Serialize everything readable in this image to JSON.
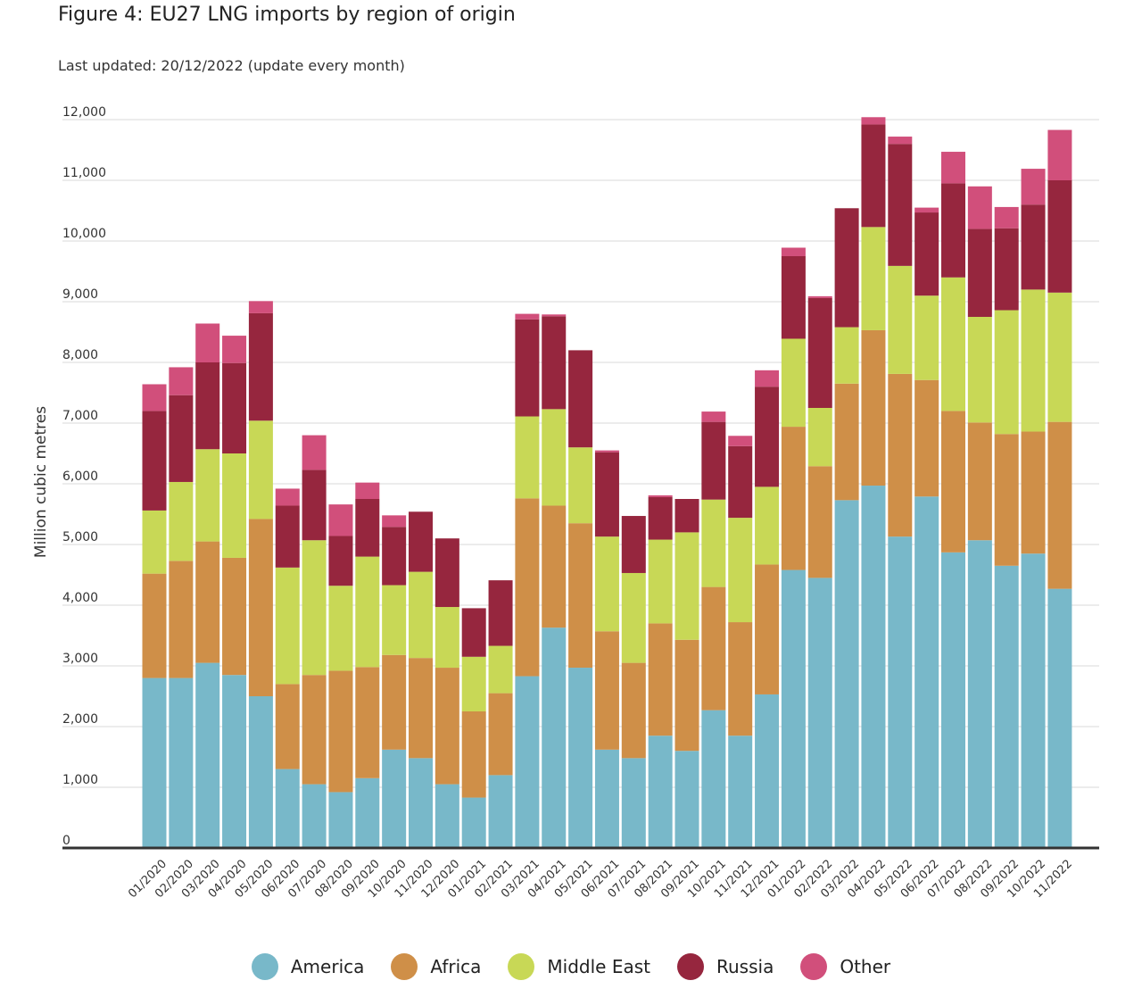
{
  "title": "Figure 4: EU27 LNG imports by region of origin",
  "subtitle": "Last updated: 20/12/2022 (update every month)",
  "colors": {
    "America": "#78b8c9",
    "Africa": "#cf8f48",
    "Middle East": "#c8d856",
    "Russia": "#96263e",
    "Other": "#d14f7b",
    "grid": "#d9d9d9",
    "axis": "#333333"
  },
  "chart_data": {
    "type": "bar",
    "stacked": true,
    "title": "Figure 4: EU27 LNG imports by region of origin",
    "ylabel": "Million cubic metres",
    "xlabel": "",
    "ylim": [
      0,
      12000
    ],
    "yticks": [
      0,
      1000,
      2000,
      3000,
      4000,
      5000,
      6000,
      7000,
      8000,
      9000,
      10000,
      11000,
      12000
    ],
    "ytick_labels": [
      "0",
      "1,000",
      "2,000",
      "3,000",
      "4,000",
      "5,000",
      "6,000",
      "7,000",
      "8,000",
      "9,000",
      "10,000",
      "11,000",
      "12,000"
    ],
    "grid": true,
    "legend_position": "bottom",
    "categories": [
      "01/2020",
      "02/2020",
      "03/2020",
      "04/2020",
      "05/2020",
      "06/2020",
      "07/2020",
      "08/2020",
      "09/2020",
      "10/2020",
      "11/2020",
      "12/2020",
      "01/2021",
      "02/2021",
      "03/2021",
      "04/2021",
      "05/2021",
      "06/2021",
      "07/2021",
      "08/2021",
      "09/2021",
      "10/2021",
      "11/2021",
      "12/2021",
      "01/2022",
      "02/2022",
      "03/2022",
      "04/2022",
      "05/2022",
      "06/2022",
      "07/2022",
      "08/2022",
      "09/2022",
      "10/2022",
      "11/2022"
    ],
    "series": [
      {
        "name": "America",
        "values": [
          2800,
          2800,
          3050,
          2850,
          2500,
          1300,
          1050,
          920,
          1150,
          1620,
          1480,
          1050,
          830,
          1200,
          2830,
          3630,
          2970,
          1620,
          1480,
          1850,
          1600,
          2270,
          1850,
          2530,
          4580,
          4450,
          5730,
          5970,
          5130,
          5790,
          4870,
          5070,
          4650,
          4850,
          4270
        ]
      },
      {
        "name": "Africa",
        "values": [
          1720,
          1930,
          2000,
          1930,
          2920,
          1400,
          1800,
          2000,
          1830,
          1560,
          1650,
          1920,
          1420,
          1350,
          2930,
          2010,
          2380,
          1950,
          1570,
          1850,
          1830,
          2030,
          1870,
          2140,
          2360,
          1840,
          1920,
          2560,
          2680,
          1920,
          2330,
          1940,
          2170,
          2010,
          2750
        ]
      },
      {
        "name": "Middle East",
        "values": [
          1040,
          1300,
          1520,
          1720,
          1620,
          1920,
          2220,
          1400,
          1820,
          1150,
          1420,
          1000,
          900,
          780,
          1350,
          1590,
          1250,
          1560,
          1480,
          1380,
          1770,
          1440,
          1720,
          1280,
          1450,
          960,
          930,
          1700,
          1780,
          1390,
          2200,
          1740,
          2040,
          2340,
          2130
        ]
      },
      {
        "name": "Russia",
        "values": [
          1640,
          1430,
          1430,
          1490,
          1770,
          1020,
          1160,
          820,
          950,
          960,
          990,
          1130,
          800,
          1080,
          1600,
          1530,
          1600,
          1390,
          940,
          700,
          550,
          1280,
          1180,
          1650,
          1360,
          1810,
          1960,
          1690,
          2010,
          1370,
          1550,
          1450,
          1350,
          1400,
          1850
        ]
      },
      {
        "name": "Other",
        "values": [
          440,
          460,
          640,
          450,
          200,
          280,
          570,
          520,
          270,
          190,
          0,
          0,
          0,
          0,
          90,
          30,
          0,
          30,
          0,
          30,
          0,
          170,
          170,
          270,
          140,
          30,
          0,
          120,
          120,
          80,
          520,
          700,
          350,
          590,
          830
        ]
      }
    ]
  },
  "legend": [
    {
      "label": "America",
      "color": "#78b8c9"
    },
    {
      "label": "Africa",
      "color": "#cf8f48"
    },
    {
      "label": "Middle East",
      "color": "#c8d856"
    },
    {
      "label": "Russia",
      "color": "#96263e"
    },
    {
      "label": "Other",
      "color": "#d14f7b"
    }
  ]
}
